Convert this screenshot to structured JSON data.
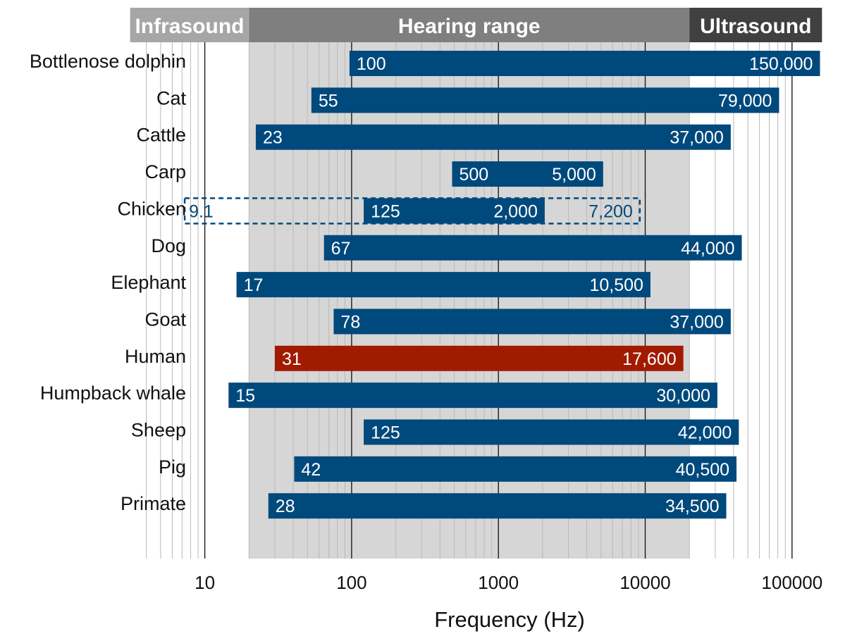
{
  "bands": [
    {
      "label": "Infrasound",
      "from": 3.1,
      "to": 20,
      "color": "#a6a6a6"
    },
    {
      "label": "Hearing range",
      "from": 20,
      "to": 20000,
      "color": "#7f7f7f"
    },
    {
      "label": "Ultrasound",
      "from": 20000,
      "to": 160000,
      "color": "#404040"
    }
  ],
  "colors": {
    "bar": "#00497c",
    "highlight": "#a11b00",
    "hearing_bg": "#d6d6d6",
    "grid_minor": "#b9b9b9",
    "grid_major": "#1a1a1a"
  },
  "chart_data": {
    "type": "bar",
    "orientation": "horizontal-range",
    "xscale": "log",
    "xlim": [
      3.1,
      160000
    ],
    "xlabel": "Frequency (Hz)",
    "xticks": [
      10,
      100,
      1000,
      10000,
      100000
    ],
    "xtick_labels": [
      "10",
      "100",
      "1000",
      "10000",
      "100000"
    ],
    "grid": true,
    "categories": [
      "Bottlenose dolphin",
      "Cat",
      "Cattle",
      "Carp",
      "Chicken",
      "Dog",
      "Elephant",
      "Goat",
      "Human",
      "Humpback whale",
      "Sheep",
      "Pig",
      "Primate"
    ],
    "series": [
      {
        "low": [
          100,
          55,
          23,
          500,
          125,
          67,
          17,
          78,
          31,
          15,
          125,
          42,
          28
        ],
        "high": [
          150000,
          79000,
          37000,
          5000,
          2000,
          44000,
          10500,
          37000,
          17600,
          30000,
          42000,
          40500,
          34500
        ],
        "low_labels": [
          "100",
          "55",
          "23",
          "500",
          "125",
          "67",
          "17",
          "78",
          "31",
          "15",
          "125",
          "42",
          "28"
        ],
        "high_labels": [
          "150,000",
          "79,000",
          "37,000",
          "5,000",
          "2,000",
          "44,000",
          "10,500",
          "37,000",
          "17,600",
          "30,000",
          "42,000",
          "40,500",
          "34,500"
        ]
      }
    ],
    "highlight": "Human",
    "extended_ranges": [
      {
        "category": "Chicken",
        "low": 9.1,
        "high": 7200,
        "low_label": "9.1",
        "high_label": "7,200",
        "style": "dashed"
      }
    ]
  }
}
